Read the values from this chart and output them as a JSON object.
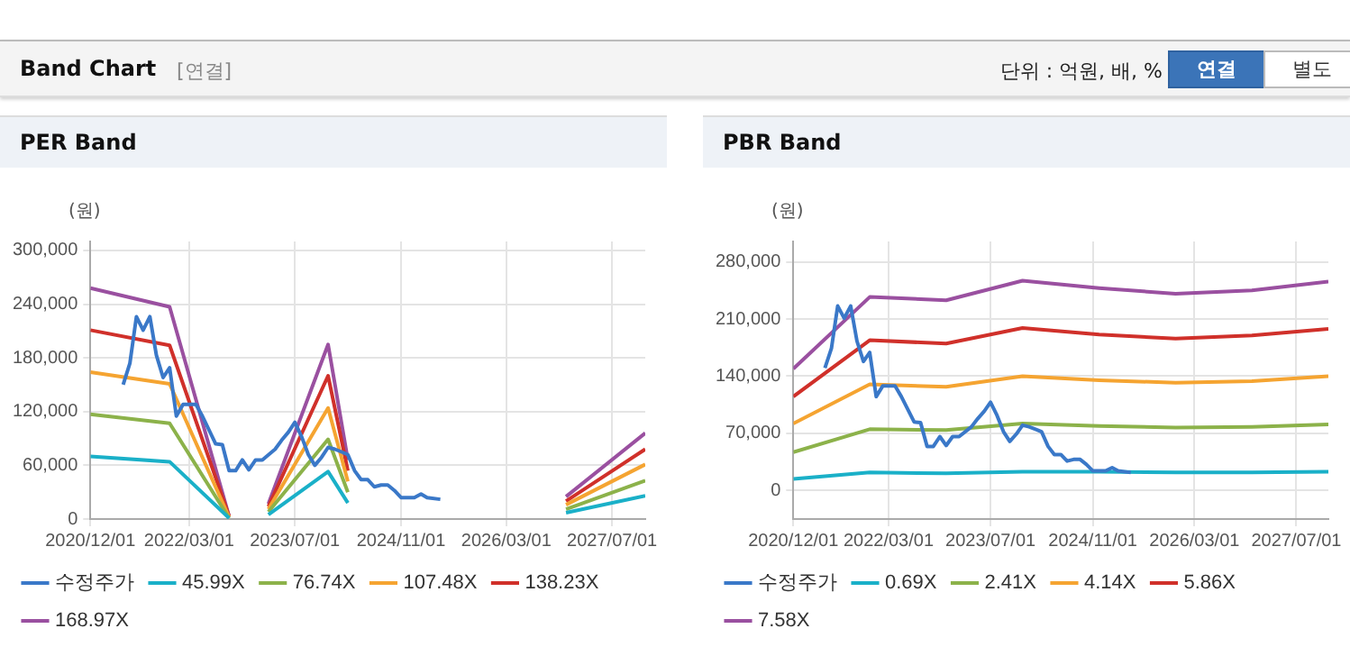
{
  "chart_data": [
    {
      "type": "other",
      "title": "Band Chart",
      "subtitle": "[연결]",
      "annotations": [
        "단위 : 억원, 배, %",
        "연결",
        "별도"
      ]
    },
    {
      "type": "line",
      "title": "PER Band",
      "ylabel": "(원)",
      "xlim": [
        "2020-12-01",
        "2027-12-01"
      ],
      "xticks": [
        {
          "value": "2020-12-01",
          "label": "2020/12/01"
        },
        {
          "value": "2022-03-01",
          "label": "2022/03/01"
        },
        {
          "value": "2023-07-01",
          "label": "2023/07/01"
        },
        {
          "value": "2024-11-01",
          "label": "2024/11/01"
        },
        {
          "value": "2026-03-01",
          "label": "2026/03/01"
        },
        {
          "value": "2027-07-01",
          "label": "2027/07/01"
        }
      ],
      "ylim": [
        0,
        310000
      ],
      "yticks": [
        0,
        {
          "value": 60000,
          "label": "60,000"
        },
        {
          "value": 120000,
          "label": "120,000"
        },
        {
          "value": 180000,
          "label": "180,000"
        },
        {
          "value": 240000,
          "label": "240,000"
        },
        {
          "value": 300000,
          "label": "300,000"
        }
      ],
      "grid": true,
      "legend": "bottom",
      "marker": "none",
      "series": [
        {
          "name": "수정주가",
          "color": "#3a78c8",
          "x": [
            "2021-05-01",
            "2021-06-01",
            "2021-07-01",
            "2021-08-01",
            "2021-09-01",
            "2021-10-01",
            "2021-11-01",
            "2021-12-01",
            "2022-01-01",
            "2022-02-01",
            "2022-04-01",
            "2022-05-01",
            "2022-07-01",
            "2022-08-01",
            "2022-09-01",
            "2022-10-01",
            "2022-11-01",
            "2022-12-01",
            "2023-01-01",
            "2023-02-01",
            "2023-04-01",
            "2023-05-01",
            "2023-06-01",
            "2023-07-01",
            "2023-08-01",
            "2023-09-01",
            "2023-10-01",
            "2023-11-01",
            "2023-12-01",
            "2024-01-01",
            "2024-02-01",
            "2024-03-01",
            "2024-04-01",
            "2024-05-01",
            "2024-06-01",
            "2024-07-01",
            "2024-08-01",
            "2024-09-01",
            "2024-10-01",
            "2024-11-01",
            "2024-12-01",
            "2025-01-01",
            "2025-02-01",
            "2025-03-01",
            "2025-05-01"
          ],
          "values": [
            150000,
            174000,
            226000,
            211000,
            226000,
            183000,
            158000,
            169000,
            115000,
            128000,
            128000,
            115000,
            84000,
            83000,
            54000,
            54000,
            66000,
            55000,
            66000,
            66000,
            78000,
            88000,
            97000,
            108000,
            92000,
            72000,
            60000,
            69000,
            80000,
            78000,
            75000,
            72000,
            54000,
            44000,
            44000,
            36000,
            38000,
            38000,
            32000,
            24000,
            24000,
            24000,
            28000,
            24000,
            22000
          ]
        },
        {
          "name": "45.99X",
          "color": "#1ab0c8",
          "x": [
            "2020-12-01",
            "2021-12-01",
            "2022-09-01",
            "2022-12-01",
            "2023-03-01",
            "2023-12-01",
            "2024-03-01",
            "2025-06-01",
            "2026-12-01",
            "2027-12-01"
          ],
          "values": [
            70000,
            64000,
            1000,
            null,
            5000,
            53000,
            18000,
            null,
            7000,
            26000
          ]
        },
        {
          "name": "76.74X",
          "color": "#8cb24a",
          "x": [
            "2020-12-01",
            "2021-12-01",
            "2022-09-01",
            "2022-12-01",
            "2023-03-01",
            "2023-12-01",
            "2024-03-01",
            "2025-06-01",
            "2026-12-01",
            "2027-12-01"
          ],
          "values": [
            117000,
            107000,
            1000,
            null,
            8000,
            89000,
            30000,
            null,
            11000,
            43000
          ]
        },
        {
          "name": "107.48X",
          "color": "#f5a431",
          "x": [
            "2020-12-01",
            "2021-12-01",
            "2022-09-01",
            "2022-12-01",
            "2023-03-01",
            "2023-12-01",
            "2024-03-01",
            "2025-06-01",
            "2026-12-01",
            "2027-12-01"
          ],
          "values": [
            164000,
            151000,
            2000,
            null,
            11000,
            124000,
            42000,
            null,
            16000,
            61000
          ]
        },
        {
          "name": "138.23X",
          "color": "#d0302a",
          "x": [
            "2020-12-01",
            "2021-12-01",
            "2022-09-01",
            "2022-12-01",
            "2023-03-01",
            "2023-12-01",
            "2024-03-01",
            "2025-06-01",
            "2026-12-01",
            "2027-12-01"
          ],
          "values": [
            211000,
            194000,
            3000,
            null,
            14000,
            160000,
            54000,
            null,
            20000,
            78000
          ]
        },
        {
          "name": "168.97X",
          "color": "#9a50a0",
          "x": [
            "2020-12-01",
            "2021-12-01",
            "2022-09-01",
            "2022-12-01",
            "2023-03-01",
            "2023-12-01",
            "2024-03-01",
            "2025-06-01",
            "2026-12-01",
            "2027-12-01"
          ],
          "values": [
            258000,
            237000,
            3000,
            null,
            17000,
            195000,
            66000,
            null,
            25000,
            96000
          ]
        }
      ]
    },
    {
      "type": "line",
      "title": "PBR Band",
      "ylabel": "(원)",
      "xlim": [
        "2020-12-01",
        "2027-12-01"
      ],
      "xticks": [
        {
          "value": "2020-12-01",
          "label": "2020/12/01"
        },
        {
          "value": "2022-03-01",
          "label": "2022/03/01"
        },
        {
          "value": "2023-07-01",
          "label": "2023/07/01"
        },
        {
          "value": "2024-11-01",
          "label": "2024/11/01"
        },
        {
          "value": "2026-03-01",
          "label": "2026/03/01"
        },
        {
          "value": "2027-07-01",
          "label": "2027/07/01"
        }
      ],
      "ylim": [
        -35000,
        305000
      ],
      "yticks": [
        0,
        {
          "value": 70000,
          "label": "70,000"
        },
        {
          "value": 140000,
          "label": "140,000"
        },
        {
          "value": 210000,
          "label": "210,000"
        },
        {
          "value": 280000,
          "label": "280,000"
        }
      ],
      "grid": true,
      "legend": "bottom",
      "marker": "none",
      "series": [
        {
          "name": "수정주가",
          "color": "#3a78c8",
          "x": [
            "2021-05-01",
            "2021-06-01",
            "2021-07-01",
            "2021-08-01",
            "2021-09-01",
            "2021-10-01",
            "2021-11-01",
            "2021-12-01",
            "2022-01-01",
            "2022-02-01",
            "2022-04-01",
            "2022-05-01",
            "2022-07-01",
            "2022-08-01",
            "2022-09-01",
            "2022-10-01",
            "2022-11-01",
            "2022-12-01",
            "2023-01-01",
            "2023-02-01",
            "2023-04-01",
            "2023-05-01",
            "2023-06-01",
            "2023-07-01",
            "2023-08-01",
            "2023-09-01",
            "2023-10-01",
            "2023-11-01",
            "2023-12-01",
            "2024-01-01",
            "2024-02-01",
            "2024-03-01",
            "2024-04-01",
            "2024-05-01",
            "2024-06-01",
            "2024-07-01",
            "2024-08-01",
            "2024-09-01",
            "2024-10-01",
            "2024-11-01",
            "2024-12-01",
            "2025-01-01",
            "2025-02-01",
            "2025-03-01",
            "2025-05-01"
          ],
          "values": [
            150000,
            174000,
            226000,
            211000,
            226000,
            183000,
            158000,
            169000,
            115000,
            128000,
            128000,
            115000,
            84000,
            83000,
            54000,
            54000,
            66000,
            55000,
            66000,
            66000,
            78000,
            88000,
            97000,
            108000,
            92000,
            72000,
            60000,
            69000,
            80000,
            78000,
            75000,
            72000,
            54000,
            44000,
            44000,
            36000,
            38000,
            38000,
            32000,
            24000,
            24000,
            24000,
            28000,
            24000,
            22000
          ]
        },
        {
          "name": "0.69X",
          "color": "#1ab0c8",
          "x": [
            "2020-12-01",
            "2021-12-01",
            "2022-12-01",
            "2023-12-01",
            "2024-12-01",
            "2025-12-01",
            "2026-12-01",
            "2027-12-01"
          ],
          "values": [
            14000,
            22000,
            21000,
            23000,
            23000,
            22000,
            22000,
            23000
          ]
        },
        {
          "name": "2.41X",
          "color": "#8cb24a",
          "x": [
            "2020-12-01",
            "2021-12-01",
            "2022-12-01",
            "2023-12-01",
            "2024-12-01",
            "2025-12-01",
            "2026-12-01",
            "2027-12-01"
          ],
          "values": [
            47000,
            75000,
            74000,
            82000,
            79000,
            77000,
            78000,
            81000
          ]
        },
        {
          "name": "4.14X",
          "color": "#f5a431",
          "x": [
            "2020-12-01",
            "2021-12-01",
            "2022-12-01",
            "2023-12-01",
            "2024-12-01",
            "2025-12-01",
            "2026-12-01",
            "2027-12-01"
          ],
          "values": [
            82000,
            130000,
            127000,
            140000,
            135000,
            132000,
            134000,
            140000
          ]
        },
        {
          "name": "5.86X",
          "color": "#d0302a",
          "x": [
            "2020-12-01",
            "2021-12-01",
            "2022-12-01",
            "2023-12-01",
            "2024-12-01",
            "2025-12-01",
            "2026-12-01",
            "2027-12-01"
          ],
          "values": [
            115000,
            184000,
            180000,
            199000,
            191000,
            186000,
            190000,
            198000
          ]
        },
        {
          "name": "7.58X",
          "color": "#9a50a0",
          "x": [
            "2020-12-01",
            "2021-12-01",
            "2022-12-01",
            "2023-12-01",
            "2024-12-01",
            "2025-12-01",
            "2026-12-01",
            "2027-12-01"
          ],
          "values": [
            149000,
            237000,
            233000,
            257000,
            248000,
            241000,
            245000,
            256000
          ]
        }
      ]
    }
  ]
}
